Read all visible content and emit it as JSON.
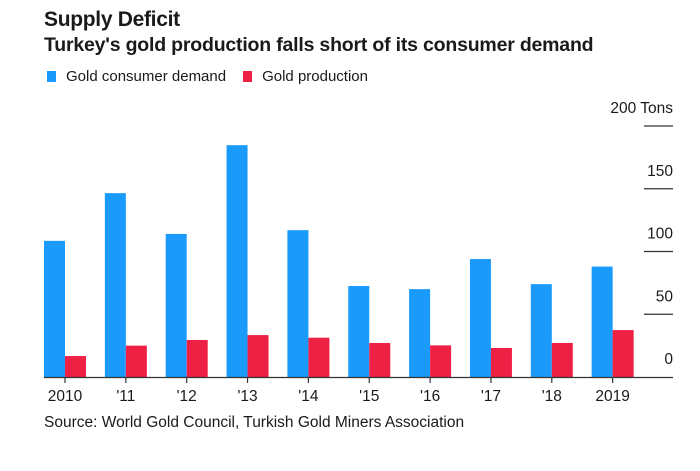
{
  "chart_data": {
    "type": "bar",
    "title": "Supply Deficit",
    "subtitle": "Turkey's gold production falls short of its consumer demand",
    "categories": [
      "2010",
      "'11",
      "'12",
      "'13",
      "'14",
      "'15",
      "'16",
      "'17",
      "'18",
      "2019"
    ],
    "series": [
      {
        "name": "Gold consumer demand",
        "color": "#1A9BFC",
        "values": [
          108.5,
          146.5,
          114,
          184.7,
          117,
          72.5,
          70,
          94,
          74,
          88
        ]
      },
      {
        "name": "Gold production",
        "color": "#EE2145",
        "values": [
          16.7,
          25,
          29.5,
          33.4,
          31.3,
          27.1,
          25.2,
          23.1,
          27.1,
          37.4
        ]
      }
    ],
    "xlabel": "",
    "ylabel": "Tons",
    "ylim": [
      0,
      200
    ],
    "yticks": [
      0,
      50,
      100,
      150,
      200
    ],
    "ytick_labels": [
      "0",
      "50",
      "100",
      "150",
      "200 Tons"
    ],
    "y_axis_position": "right",
    "grid": false,
    "legend_position": "top-left"
  },
  "source": "Source: World Gold Council, Turkish Gold Miners Association"
}
